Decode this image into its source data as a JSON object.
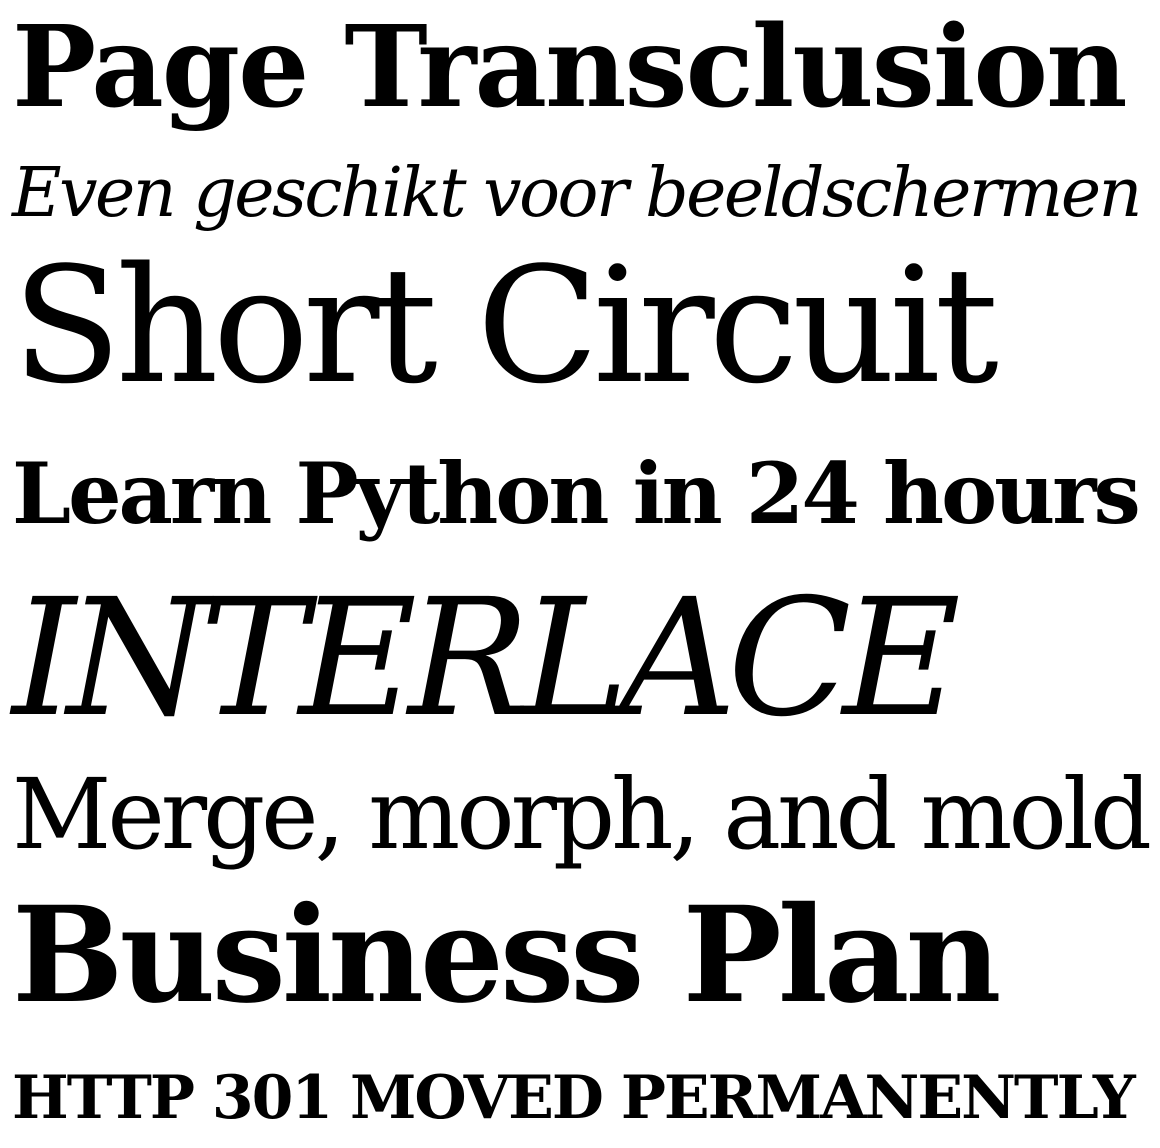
{
  "specimen": {
    "lines": [
      {
        "text": "Page Transclusion"
      },
      {
        "text": "Even geschikt voor beeldschermen"
      },
      {
        "text": "Short Circuit"
      },
      {
        "text": "Learn Python in 24 hours"
      },
      {
        "text": "INTERLACE"
      },
      {
        "text": "Merge, morph, and mold"
      },
      {
        "text": "Business Plan"
      },
      {
        "text": "HTTP 301 MOVED PERMANENTLY"
      }
    ],
    "colors": {
      "background": "#ffffff",
      "text": "#000000"
    }
  }
}
